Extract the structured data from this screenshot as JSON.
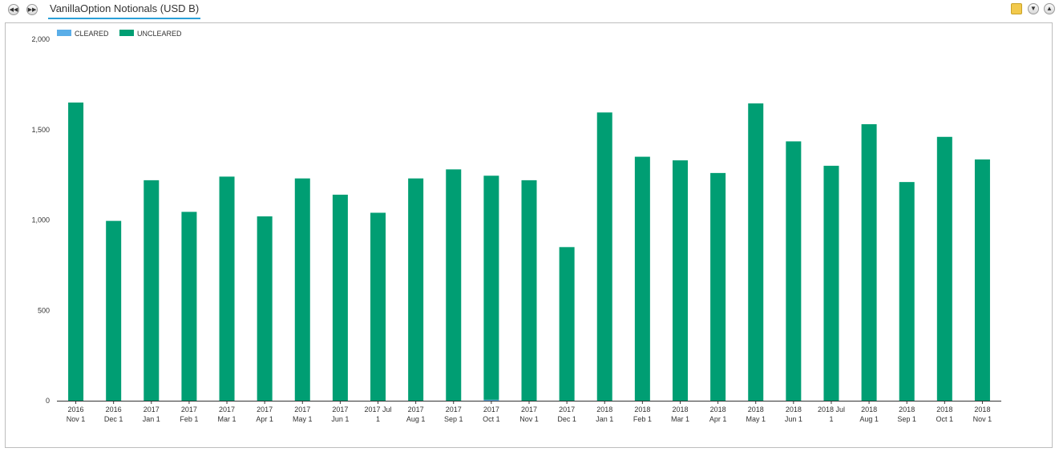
{
  "header": {
    "title": "VanillaOption Notionals (USD B)",
    "prev_icon": "rewind-icon",
    "next_icon": "fast-forward-icon"
  },
  "toolbar_right": {
    "icons": [
      "folder-export-icon",
      "collapse-icon",
      "expand-icon"
    ]
  },
  "colors": {
    "cleared": "#5aaee8",
    "uncleared": "#009e73",
    "accent": "#2a9fd8"
  },
  "chart_data": {
    "type": "bar",
    "stacked": true,
    "title": "",
    "xlabel": "",
    "ylabel": "",
    "ylim": [
      0,
      2000
    ],
    "yticks": [
      0,
      500,
      1000,
      1500,
      2000
    ],
    "ytick_labels": [
      "0",
      "500",
      "1,000",
      "1,500",
      "2,000"
    ],
    "legend_position": "top-left",
    "categories": [
      [
        "2016",
        "Nov 1"
      ],
      [
        "2016",
        "Dec 1"
      ],
      [
        "2017",
        "Jan 1"
      ],
      [
        "2017",
        "Feb 1"
      ],
      [
        "2017",
        "Mar 1"
      ],
      [
        "2017",
        "Apr 1"
      ],
      [
        "2017",
        "May 1"
      ],
      [
        "2017",
        "Jun 1"
      ],
      [
        "2017 Jul",
        "1"
      ],
      [
        "2017",
        "Aug 1"
      ],
      [
        "2017",
        "Sep 1"
      ],
      [
        "2017",
        "Oct 1"
      ],
      [
        "2017",
        "Nov 1"
      ],
      [
        "2017",
        "Dec 1"
      ],
      [
        "2018",
        "Jan 1"
      ],
      [
        "2018",
        "Feb 1"
      ],
      [
        "2018",
        "Mar 1"
      ],
      [
        "2018",
        "Apr 1"
      ],
      [
        "2018",
        "May 1"
      ],
      [
        "2018",
        "Jun 1"
      ],
      [
        "2018 Jul",
        "1"
      ],
      [
        "2018",
        "Aug 1"
      ],
      [
        "2018",
        "Sep 1"
      ],
      [
        "2018",
        "Oct 1"
      ],
      [
        "2018",
        "Nov 1"
      ]
    ],
    "series": [
      {
        "name": "CLEARED",
        "values": [
          0,
          0,
          0,
          0,
          0,
          0,
          0,
          0,
          0,
          0,
          0,
          5,
          0,
          0,
          0,
          0,
          0,
          0,
          0,
          0,
          0,
          0,
          0,
          0,
          0
        ]
      },
      {
        "name": "UNCLEARED",
        "values": [
          1650,
          995,
          1220,
          1045,
          1240,
          1020,
          1230,
          1140,
          1040,
          1230,
          1280,
          1240,
          1220,
          850,
          1595,
          1350,
          1330,
          1260,
          1645,
          1435,
          1300,
          1530,
          1210,
          1460,
          1335
        ]
      }
    ]
  }
}
